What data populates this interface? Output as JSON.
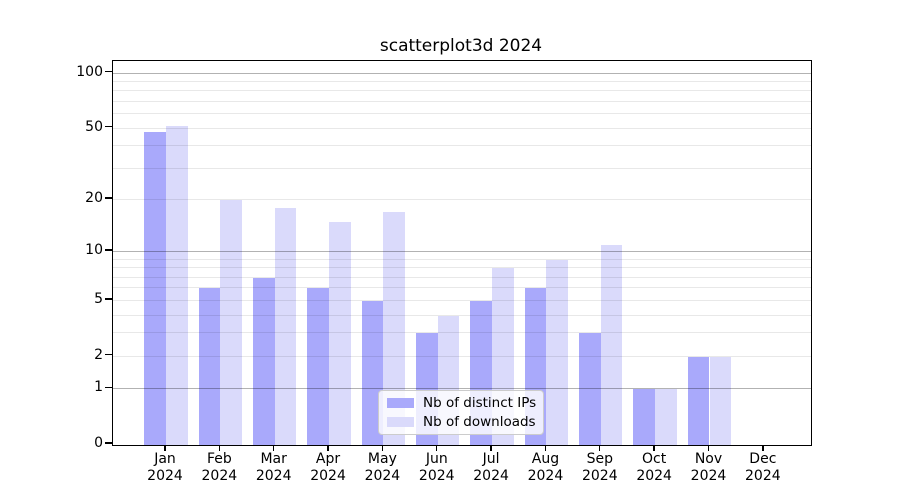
{
  "title": "scatterplot3d 2024",
  "chart_data": {
    "type": "bar",
    "title": "scatterplot3d 2024",
    "categories": [
      "Jan",
      "Feb",
      "Mar",
      "Apr",
      "May",
      "Jun",
      "Jul",
      "Aug",
      "Sep",
      "Oct",
      "Nov",
      "Dec"
    ],
    "year": "2024",
    "series": [
      {
        "name": "Nb of distinct IPs",
        "color": "#a9a9fb",
        "values": [
          48,
          6,
          7,
          6,
          5,
          3,
          5,
          6,
          3,
          1,
          2,
          0
        ]
      },
      {
        "name": "Nb of downloads",
        "color": "#dadafb",
        "values": [
          52,
          20,
          18,
          15,
          17,
          4,
          8,
          9,
          11,
          1,
          2,
          0
        ]
      }
    ],
    "yscale": "log1p",
    "ylim": [
      0,
      116
    ],
    "yticks": [
      0,
      1,
      2,
      5,
      10,
      20,
      50,
      100
    ],
    "major_gridlines": [
      1,
      10,
      100
    ],
    "minor_gridlines": [
      2,
      3,
      4,
      5,
      6,
      7,
      8,
      9,
      20,
      30,
      40,
      50,
      60,
      70,
      80,
      90
    ],
    "grid": true,
    "legend_position": "lower-center",
    "colors": {
      "axis": "#000000",
      "grid_major": "#b8b8b8",
      "grid_minor": "#ebebeb",
      "background": "#ffffff"
    }
  }
}
